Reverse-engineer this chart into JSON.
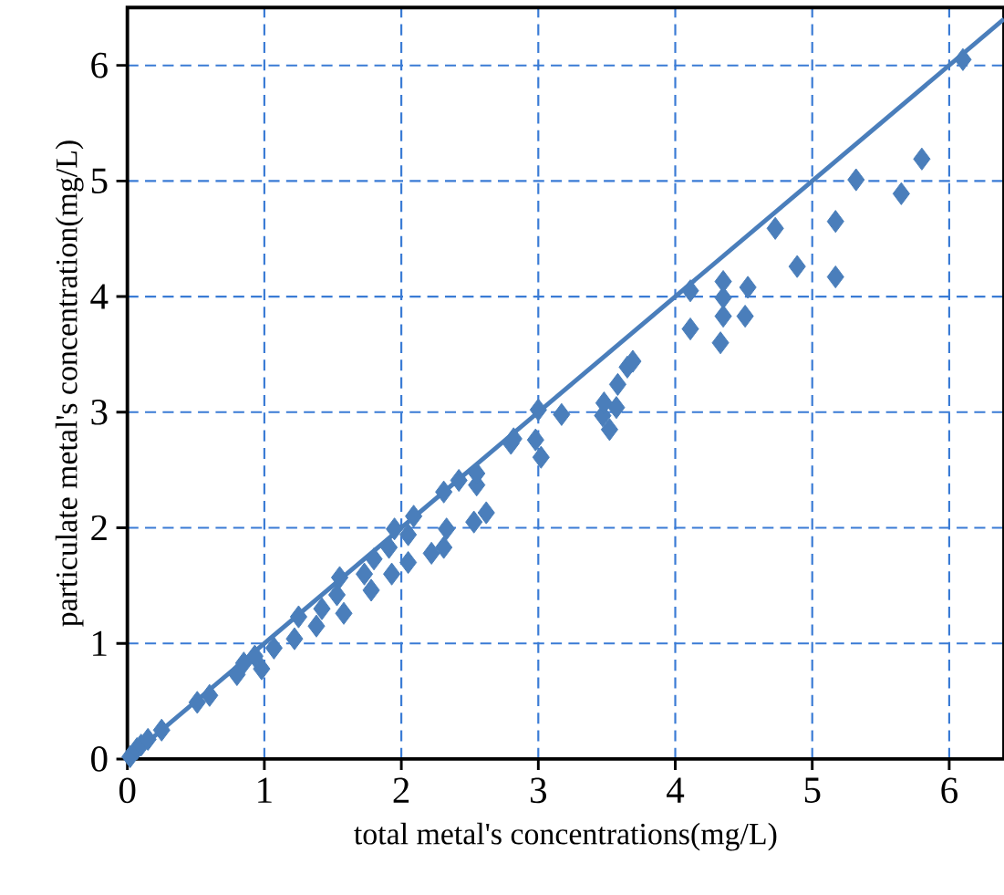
{
  "chart_data": {
    "type": "scatter",
    "xlabel": "total metal's concentrations(mg/L)",
    "ylabel": "particulate metal's concentration(mg/L)",
    "xlim": [
      0,
      6.4
    ],
    "ylim": [
      0,
      6.5
    ],
    "xticks": [
      0,
      1,
      2,
      3,
      4,
      5,
      6
    ],
    "yticks": [
      0,
      1,
      2,
      3,
      4,
      5,
      6
    ],
    "grid": true,
    "series": [
      {
        "marker": "diamond",
        "color": "#4a7ebb",
        "x": [
          0.02,
          0.07,
          0.1,
          0.15,
          0.25,
          0.51,
          0.6,
          0.8,
          0.85,
          0.98,
          0.93,
          1.07,
          1.22,
          1.25,
          1.38,
          1.42,
          1.58,
          1.53,
          1.55,
          1.73,
          1.78,
          1.8,
          1.93,
          2.05,
          1.91,
          1.95,
          2.05,
          2.09,
          2.22,
          2.31,
          2.33,
          2.53,
          2.62,
          2.31,
          2.42,
          2.55,
          2.55,
          2.8,
          2.82,
          3.02,
          2.98,
          3.0,
          3.17,
          3.52,
          3.47,
          3.57,
          3.48,
          3.58,
          3.65,
          3.69,
          4.33,
          4.11,
          4.51,
          4.35,
          4.35,
          4.53,
          4.35,
          4.11,
          5.17,
          4.89,
          4.73,
          5.17,
          5.65,
          5.32,
          5.8,
          6.1
        ],
        "values": [
          0.02,
          0.09,
          0.12,
          0.17,
          0.25,
          0.49,
          0.55,
          0.73,
          0.83,
          0.78,
          0.89,
          0.96,
          1.04,
          1.23,
          1.15,
          1.3,
          1.26,
          1.42,
          1.57,
          1.6,
          1.46,
          1.73,
          1.6,
          1.7,
          1.83,
          1.99,
          1.94,
          2.1,
          1.78,
          1.83,
          1.99,
          2.05,
          2.13,
          2.31,
          2.41,
          2.37,
          2.47,
          2.73,
          2.77,
          2.61,
          2.76,
          3.02,
          2.98,
          2.85,
          2.97,
          3.04,
          3.08,
          3.24,
          3.39,
          3.44,
          3.6,
          3.72,
          3.83,
          3.83,
          3.99,
          4.08,
          4.13,
          4.05,
          4.17,
          4.26,
          4.59,
          4.65,
          4.89,
          5.01,
          5.19,
          6.05
        ]
      },
      {
        "type": "line",
        "color": "#4a7ebb",
        "x": [
          0,
          6.4
        ],
        "values": [
          0,
          6.4
        ]
      }
    ]
  }
}
